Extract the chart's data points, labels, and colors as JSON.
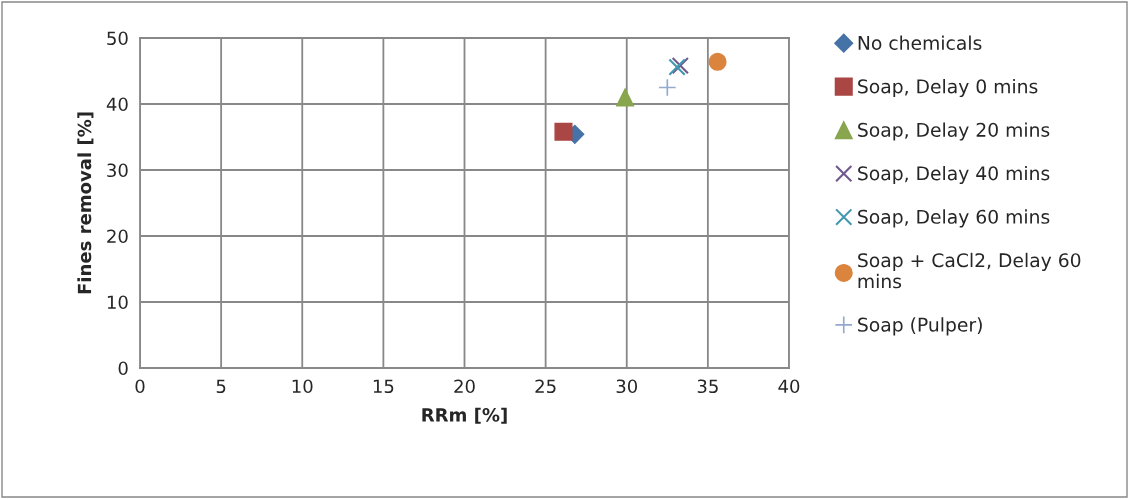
{
  "chart_data": {
    "type": "scatter",
    "xlabel": "RRm [%]",
    "ylabel": "Fines removal [%]",
    "xlim": [
      0,
      40
    ],
    "xticks": [
      0,
      5,
      10,
      15,
      20,
      25,
      30,
      35,
      40
    ],
    "ylim": [
      0,
      50
    ],
    "yticks": [
      0,
      10,
      20,
      30,
      40,
      50
    ],
    "grid": true,
    "legend": "right",
    "series": [
      {
        "name": "No chemicals",
        "color": "#4572a7",
        "marker": "diamond",
        "x": [
          26.8
        ],
        "values": [
          35.4
        ]
      },
      {
        "name": "Soap, Delay 0 mins",
        "color": "#aa4643",
        "marker": "square",
        "x": [
          26.1
        ],
        "values": [
          35.8
        ]
      },
      {
        "name": "Soap, Delay 20 mins",
        "color": "#89a54e",
        "marker": "triangle",
        "x": [
          29.9
        ],
        "values": [
          41
        ]
      },
      {
        "name": "Soap, Delay 40 mins",
        "color": "#71588f",
        "marker": "cross",
        "x": [
          33.3
        ],
        "values": [
          45.8
        ]
      },
      {
        "name": "Soap, Delay 60 mins",
        "color": "#4198af",
        "marker": "cross",
        "x": [
          33.1
        ],
        "values": [
          45.6
        ]
      },
      {
        "name": "Soap + CaCl2, Delay 60 mins",
        "color": "#db843d",
        "marker": "circle",
        "x": [
          35.6
        ],
        "values": [
          46.4
        ]
      },
      {
        "name": "Soap (Pulper)",
        "color": "#93a9cf",
        "marker": "plus",
        "x": [
          32.5
        ],
        "values": [
          42.5
        ]
      }
    ]
  }
}
